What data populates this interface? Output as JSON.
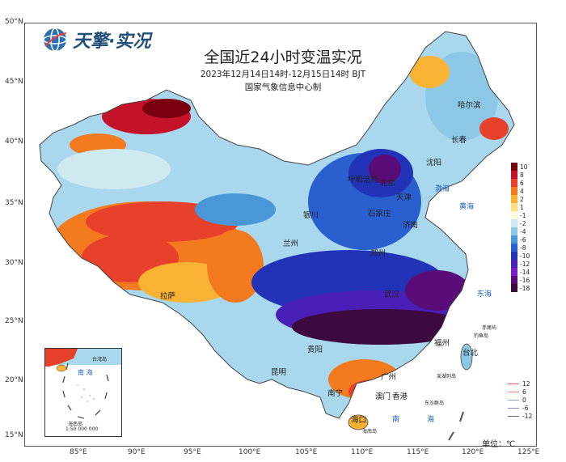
{
  "logo": {
    "text": "天擎·实况"
  },
  "title": "全国近24小时变温实况",
  "subtitle": "2023年12月14日14时-12月15日14时  BJT",
  "organization": "国家气象信息中心制",
  "axes": {
    "lat_labels": [
      "50°N",
      "45°N",
      "40°N",
      "35°N",
      "30°N",
      "25°N",
      "20°N",
      "15°N"
    ],
    "lon_labels": [
      "85°E",
      "90°E",
      "95°E",
      "100°E",
      "105°E",
      "110°E",
      "115°E",
      "120°E",
      "125°E"
    ]
  },
  "legend": {
    "fill_entries": [
      {
        "label": "10",
        "color": "#7a0010"
      },
      {
        "label": "8",
        "color": "#c4122b"
      },
      {
        "label": "6",
        "color": "#e8412b"
      },
      {
        "label": "4",
        "color": "#f47a1f"
      },
      {
        "label": "2",
        "color": "#f9b233"
      },
      {
        "label": "1",
        "color": "#fde07d"
      },
      {
        "label": "-1",
        "color": "#fdfbd8"
      },
      {
        "label": "-2",
        "color": "#cfe9f0"
      },
      {
        "label": "-4",
        "color": "#8cc8e6"
      },
      {
        "label": "-6",
        "color": "#4a97d8"
      },
      {
        "label": "-8",
        "color": "#2a5fd0"
      },
      {
        "label": "-10",
        "color": "#2233b8"
      },
      {
        "label": "-12",
        "color": "#4a1fb8"
      },
      {
        "label": "-14",
        "color": "#7a1fc8"
      },
      {
        "label": "-16",
        "color": "#5a0d78"
      },
      {
        "label": "-18",
        "color": "#3d0a3f"
      }
    ],
    "line_entries": [
      {
        "label": "12",
        "color": "#e06060"
      },
      {
        "label": "6",
        "color": "#f08080"
      },
      {
        "label": "0",
        "color": "#7ba7e0"
      },
      {
        "label": "-6",
        "color": "#9b7fd0"
      },
      {
        "label": "-12",
        "color": "#666666"
      }
    ],
    "unit": "单位：℃"
  },
  "cities": {
    "harbin": "哈尔滨",
    "changchun": "长春",
    "shenyang": "沈阳",
    "hohhot": "呼和浩特",
    "beijing": "北京",
    "tianjin": "天津",
    "shijiazhuang": "石家庄",
    "jinan": "济南",
    "yinchuan": "银川",
    "lanzhou": "兰州",
    "zhengzhou": "郑州",
    "wuhan": "武汉",
    "lhasa": "拉萨",
    "guiyang": "贵阳",
    "kunming": "昆明",
    "nanning": "南宁",
    "guangzhou": "广州",
    "macau": "澳门",
    "hongkong": "香港",
    "haikou": "海口",
    "fuzhou": "福州",
    "taipei": "台北"
  },
  "seas": {
    "bohai": "渤海",
    "huanghai": "黄海",
    "donghai": "东海",
    "nanhai_1": "南",
    "nanhai_2": "海",
    "inset_nanhai": "南  海"
  },
  "islands": {
    "chiwei": "赤尾屿",
    "diaoyu": "钓鱼岛",
    "penghu": "澎湖列岛",
    "dongsha": "东沙群岛",
    "xisha": "西沙群岛",
    "hainan": "海南岛",
    "inset_taiwan": "台湾岛",
    "inset_hainan": "海南岛",
    "inset_scale": "1:50 000 000"
  }
}
